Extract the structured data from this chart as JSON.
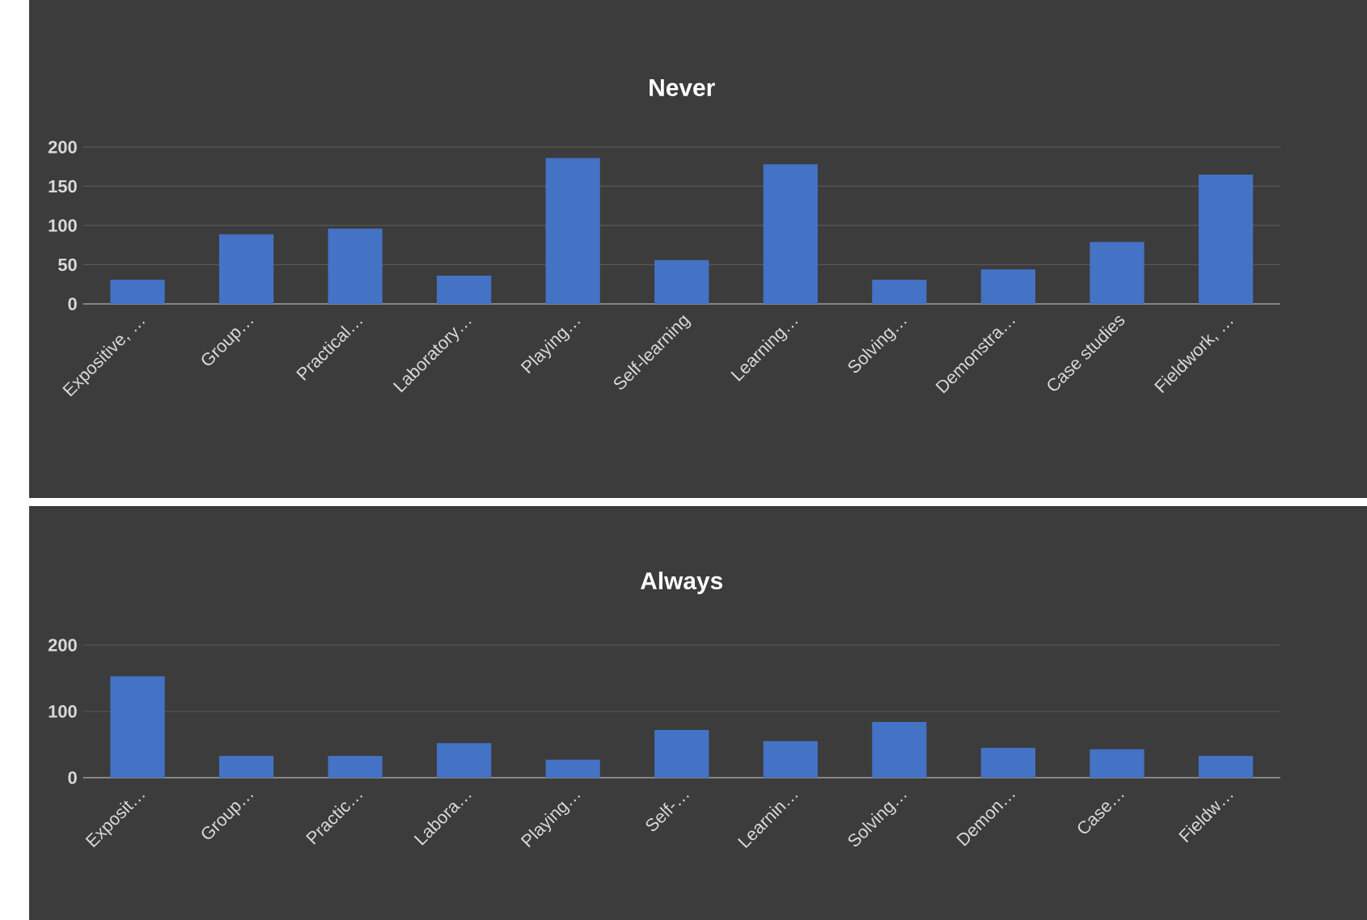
{
  "chart_data": [
    {
      "type": "bar",
      "title": "Never",
      "categories": [
        "Expositive, …",
        "Group…",
        "Practical…",
        "Laboratory…",
        "Playing…",
        "Self-learning",
        "Learning…",
        "Solving…",
        "Demonstra…",
        "Case studies",
        "Fieldwork, …"
      ],
      "values": [
        31,
        89,
        96,
        36,
        186,
        56,
        178,
        31,
        44,
        79,
        165
      ],
      "color": "#4472c4",
      "ylim": [
        0,
        200
      ],
      "yticks": [
        0,
        50,
        100,
        150,
        200
      ],
      "grid": "y"
    },
    {
      "type": "bar",
      "title": "Always",
      "categories": [
        "Exposit…",
        "Group…",
        "Practic…",
        "Labora…",
        "Playing…",
        "Self-…",
        "Learnin…",
        "Solving…",
        "Demon…",
        "Case…",
        "Fieldw…"
      ],
      "values": [
        153,
        33,
        33,
        52,
        27,
        72,
        55,
        84,
        45,
        43,
        33
      ],
      "color": "#4472c4",
      "ylim": [
        0,
        200
      ],
      "yticks": [
        0,
        100,
        200
      ],
      "grid": "y"
    }
  ]
}
